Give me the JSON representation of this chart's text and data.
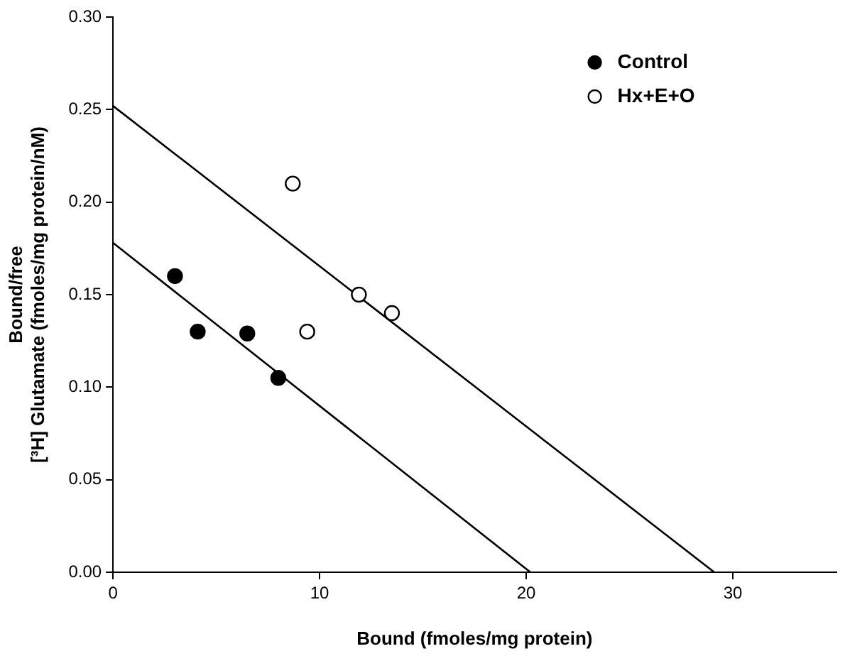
{
  "chart_data": {
    "type": "scatter",
    "xlabel": "Bound (fmoles/mg protein)",
    "ylabel": "Bound/free\n[³H] Glutamate (fmoles/mg protein/nM)",
    "series": [
      {
        "name": "Control",
        "color": "#000000",
        "x": [
          3.0,
          4.1,
          6.5,
          8.0
        ],
        "values": [
          0.16,
          0.13,
          0.129,
          0.105
        ]
      },
      {
        "name": "Hx+E+O",
        "color": "#ffffff",
        "x": [
          8.7,
          9.4,
          11.9,
          13.5
        ],
        "values": [
          0.21,
          0.13,
          0.15,
          0.14
        ]
      },
      {
        "type": "line",
        "color": "#000000",
        "marker": "none",
        "x": [
          0,
          20.2
        ],
        "values": [
          0.178,
          0
        ]
      },
      {
        "type": "line",
        "color": "#000000",
        "marker": "none",
        "x": [
          0,
          29.1
        ],
        "values": [
          0.252,
          0
        ]
      }
    ],
    "marker": "circle",
    "line_style": "solid",
    "xlim": [
      0,
      35
    ],
    "xticks": [
      0,
      10,
      20,
      30
    ],
    "ylim": [
      0,
      0.3
    ],
    "yticks": [
      {
        "value": 0,
        "label": "0.00"
      },
      {
        "value": 0.05,
        "label": "0.05"
      },
      {
        "value": 0.1,
        "label": "0.10"
      },
      {
        "value": 0.15,
        "label": "0.15"
      },
      {
        "value": 0.2,
        "label": "0.20"
      },
      {
        "value": 0.25,
        "label": "0.25"
      },
      {
        "value": 0.3,
        "label": "0.30"
      }
    ],
    "grid": false,
    "legend": "top right"
  }
}
